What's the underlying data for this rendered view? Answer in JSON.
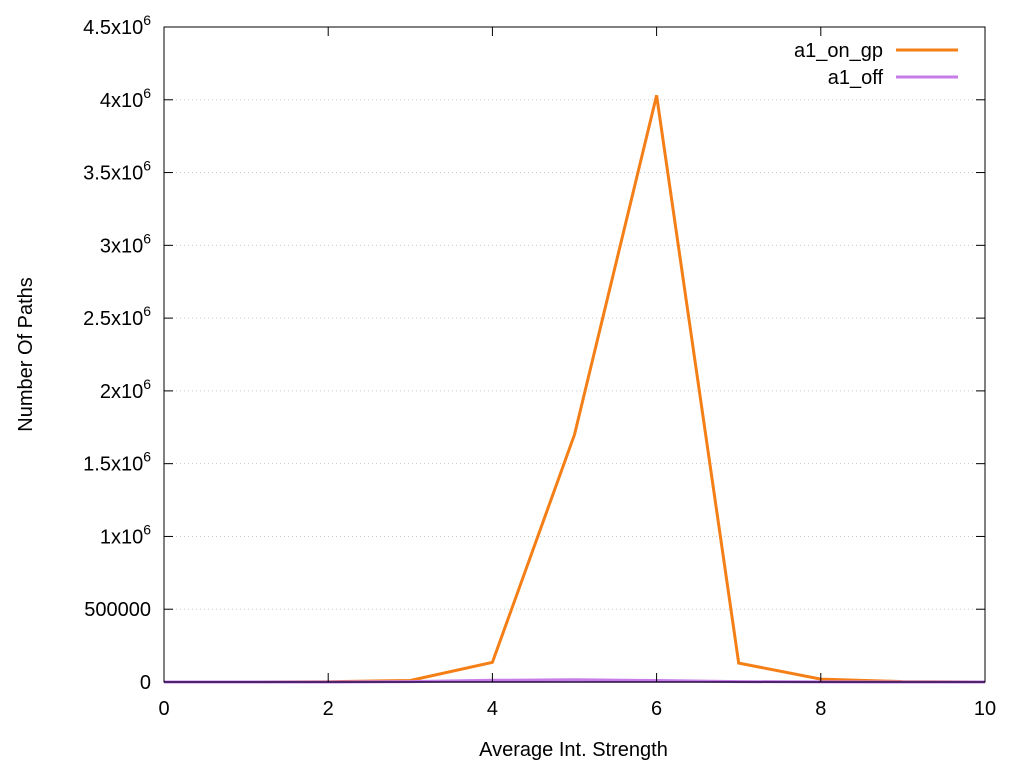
{
  "chart_data": {
    "type": "line",
    "title": "",
    "xlabel": "Average Int. Strength",
    "ylabel": "Number Of Paths",
    "xlim": [
      0,
      10
    ],
    "ylim": [
      0,
      4500000
    ],
    "x_ticks": [
      0,
      2,
      4,
      6,
      8,
      10
    ],
    "x_tick_labels": [
      "0",
      "2",
      "4",
      "6",
      "8",
      "10"
    ],
    "y_ticks": [
      0,
      500000,
      1000000,
      1500000,
      2000000,
      2500000,
      3000000,
      3500000,
      4000000,
      4500000
    ],
    "y_tick_labels": [
      {
        "mantissa": "0",
        "exp": ""
      },
      {
        "mantissa": "500000",
        "exp": ""
      },
      {
        "mantissa": "1x10",
        "exp": "6"
      },
      {
        "mantissa": "1.5x10",
        "exp": "6"
      },
      {
        "mantissa": "2x10",
        "exp": "6"
      },
      {
        "mantissa": "2.5x10",
        "exp": "6"
      },
      {
        "mantissa": "3x10",
        "exp": "6"
      },
      {
        "mantissa": "3.5x10",
        "exp": "6"
      },
      {
        "mantissa": "4x10",
        "exp": "6"
      },
      {
        "mantissa": "4.5x10",
        "exp": "6"
      }
    ],
    "grid": "horizontal-dotted",
    "legend_position": "top-right",
    "x": [
      0,
      1,
      2,
      3,
      4,
      5,
      6,
      7,
      8,
      9,
      10
    ],
    "series": [
      {
        "name": "a1_on_gp",
        "color": "#f47f17",
        "values": [
          0,
          0,
          2000,
          10000,
          135000,
          1700000,
          4030000,
          130000,
          20000,
          3000,
          0
        ]
      },
      {
        "name": "a1_off",
        "color": "#c77ce8",
        "values": [
          0,
          0,
          0,
          3000,
          12000,
          15000,
          10000,
          3000,
          500,
          0,
          0
        ]
      }
    ],
    "axis_color": "#000000",
    "baseline_color": "#6a1fbf"
  }
}
